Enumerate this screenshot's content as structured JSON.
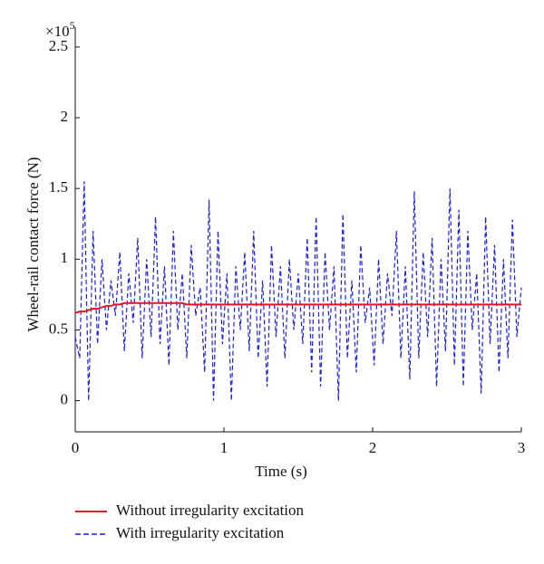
{
  "chart_data": {
    "type": "line",
    "xlabel": "Time (s)",
    "ylabel": "Wheel-rail contact force (N)",
    "y_multiplier": {
      "base": "×10",
      "exponent": "5"
    },
    "xlim": [
      0,
      3
    ],
    "xticks": [
      0,
      1,
      2,
      3
    ],
    "ylim": [
      -0.22,
      2.64
    ],
    "yticks": [
      0,
      0.5,
      1,
      1.5,
      2,
      2.5
    ],
    "x": [
      0,
      0.03,
      0.06,
      0.09,
      0.12,
      0.15,
      0.18,
      0.21,
      0.24,
      0.27,
      0.3,
      0.33,
      0.36,
      0.39,
      0.42,
      0.45,
      0.48,
      0.51,
      0.54,
      0.57,
      0.6,
      0.63,
      0.66,
      0.69,
      0.72,
      0.75,
      0.78,
      0.81,
      0.84,
      0.87,
      0.9,
      0.93,
      0.96,
      0.99,
      1.02,
      1.05,
      1.08,
      1.11,
      1.14,
      1.17,
      1.2,
      1.23,
      1.26,
      1.29,
      1.32,
      1.35,
      1.38,
      1.41,
      1.44,
      1.47,
      1.5,
      1.53,
      1.56,
      1.59,
      1.62,
      1.65,
      1.68,
      1.71,
      1.74,
      1.77,
      1.8,
      1.83,
      1.86,
      1.89,
      1.92,
      1.95,
      1.98,
      2.01,
      2.04,
      2.07,
      2.1,
      2.13,
      2.16,
      2.19,
      2.22,
      2.25,
      2.28,
      2.31,
      2.34,
      2.37,
      2.4,
      2.43,
      2.46,
      2.49,
      2.52,
      2.55,
      2.58,
      2.61,
      2.64,
      2.67,
      2.7,
      2.73,
      2.76,
      2.79,
      2.82,
      2.85,
      2.88,
      2.91,
      2.94,
      2.97,
      3
    ],
    "series": [
      {
        "name": "Without irregularity excitation",
        "color": "#e8141e",
        "dash": false,
        "values": [
          0.62,
          0.63,
          0.63,
          0.64,
          0.65,
          0.65,
          0.66,
          0.67,
          0.67,
          0.68,
          0.68,
          0.69,
          0.69,
          0.69,
          0.69,
          0.69,
          0.69,
          0.69,
          0.69,
          0.69,
          0.69,
          0.69,
          0.69,
          0.69,
          0.69,
          0.68,
          0.68,
          0.68,
          0.68,
          0.68,
          0.68,
          0.68,
          0.68,
          0.68,
          0.68,
          0.68,
          0.68,
          0.68,
          0.68,
          0.68,
          0.68,
          0.68,
          0.68,
          0.68,
          0.68,
          0.68,
          0.68,
          0.68,
          0.68,
          0.68,
          0.68,
          0.68,
          0.68,
          0.68,
          0.68,
          0.68,
          0.68,
          0.68,
          0.68,
          0.68,
          0.68,
          0.68,
          0.68,
          0.68,
          0.68,
          0.68,
          0.68,
          0.68,
          0.68,
          0.68,
          0.68,
          0.68,
          0.68,
          0.68,
          0.68,
          0.68,
          0.68,
          0.68,
          0.68,
          0.68,
          0.68,
          0.68,
          0.68,
          0.68,
          0.68,
          0.68,
          0.68,
          0.68,
          0.68,
          0.68,
          0.68,
          0.68,
          0.68,
          0.68,
          0.68,
          0.68,
          0.68,
          0.68,
          0.68,
          0.68,
          0.68
        ]
      },
      {
        "name": "With irregularity excitation",
        "color": "#1c1cf0",
        "dash": true,
        "values": [
          0.45,
          0.3,
          1.55,
          0.0,
          1.2,
          0.4,
          1.0,
          0.5,
          0.85,
          0.6,
          1.05,
          0.35,
          0.9,
          0.55,
          1.15,
          0.3,
          1.0,
          0.45,
          1.3,
          0.4,
          0.95,
          0.25,
          1.2,
          0.5,
          0.9,
          0.3,
          1.1,
          0.6,
          0.8,
          0.2,
          1.42,
          0.0,
          1.2,
          0.4,
          0.9,
          0.0,
          0.95,
          0.5,
          1.05,
          0.35,
          1.2,
          0.3,
          0.85,
          0.1,
          1.1,
          0.45,
          0.95,
          0.3,
          1.0,
          0.5,
          0.9,
          0.4,
          1.15,
          0.2,
          1.3,
          0.1,
          1.05,
          0.5,
          0.95,
          0.0,
          1.32,
          0.3,
          0.85,
          0.2,
          1.1,
          0.55,
          0.8,
          0.25,
          1.0,
          0.4,
          0.9,
          0.6,
          1.2,
          0.3,
          0.95,
          0.15,
          1.48,
          0.3,
          1.05,
          0.45,
          1.15,
          0.1,
          1.0,
          0.35,
          1.5,
          0.25,
          1.35,
          0.1,
          1.2,
          0.5,
          0.9,
          0.05,
          1.3,
          0.4,
          1.1,
          0.2,
          1.0,
          0.3,
          1.28,
          0.45,
          0.8
        ]
      }
    ],
    "legend": "below"
  }
}
